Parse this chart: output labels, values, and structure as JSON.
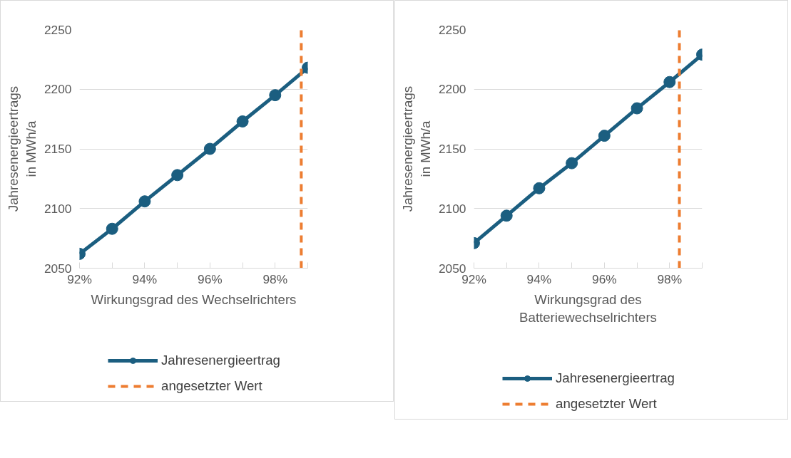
{
  "chart_data": [
    {
      "type": "line",
      "xlabel": "Wirkungsgrad des Wechselrichters",
      "ylabel": "Jahresenergieertrags\nin MWh/a",
      "x": [
        92,
        93,
        94,
        95,
        96,
        97,
        98,
        99
      ],
      "series": [
        {
          "name": "Jahresenergieertrag",
          "color": "#1b5e80",
          "values": [
            2062,
            2083,
            2106,
            2128,
            2150,
            2173,
            2195,
            2218
          ]
        }
      ],
      "ref_lines": [
        {
          "axis": "x",
          "value": 98.8,
          "label": "angesetzter Wert",
          "color": "#ed7d31",
          "line_style": "dashed"
        }
      ],
      "xlim": [
        92,
        99
      ],
      "ylim": [
        2050,
        2250
      ],
      "xticks": [
        {
          "value": 92,
          "label": "92%"
        },
        {
          "value": 93,
          "label": null
        },
        {
          "value": 94,
          "label": "94%"
        },
        {
          "value": 95,
          "label": null
        },
        {
          "value": 96,
          "label": "96%"
        },
        {
          "value": 97,
          "label": null
        },
        {
          "value": 98,
          "label": "98%"
        },
        {
          "value": 99,
          "label": null
        }
      ],
      "yticks": [
        2050,
        2100,
        2150,
        2200,
        2250
      ],
      "grid": "y",
      "legend": "bottom",
      "marker": "circle",
      "line_style": "solid"
    },
    {
      "type": "line",
      "xlabel": "Wirkungsgrad des\nBatteriewechselrichters",
      "ylabel": "Jahresenergieertrags\nin MWh/a",
      "x": [
        92,
        93,
        94,
        95,
        96,
        97,
        98,
        99
      ],
      "series": [
        {
          "name": "Jahresenergieertrag",
          "color": "#1b5e80",
          "values": [
            2071,
            2094,
            2117,
            2138,
            2161,
            2184,
            2206,
            2229
          ]
        }
      ],
      "ref_lines": [
        {
          "axis": "x",
          "value": 98.3,
          "label": "angesetzter Wert",
          "color": "#ed7d31",
          "line_style": "dashed"
        }
      ],
      "xlim": [
        92,
        99
      ],
      "ylim": [
        2050,
        2250
      ],
      "xticks": [
        {
          "value": 92,
          "label": "92%"
        },
        {
          "value": 93,
          "label": null
        },
        {
          "value": 94,
          "label": "94%"
        },
        {
          "value": 95,
          "label": null
        },
        {
          "value": 96,
          "label": "96%"
        },
        {
          "value": 97,
          "label": null
        },
        {
          "value": 98,
          "label": "98%"
        },
        {
          "value": 99,
          "label": null
        }
      ],
      "yticks": [
        2050,
        2100,
        2150,
        2200,
        2250
      ],
      "grid": "y",
      "legend": "bottom",
      "marker": "circle",
      "line_style": "solid"
    }
  ]
}
